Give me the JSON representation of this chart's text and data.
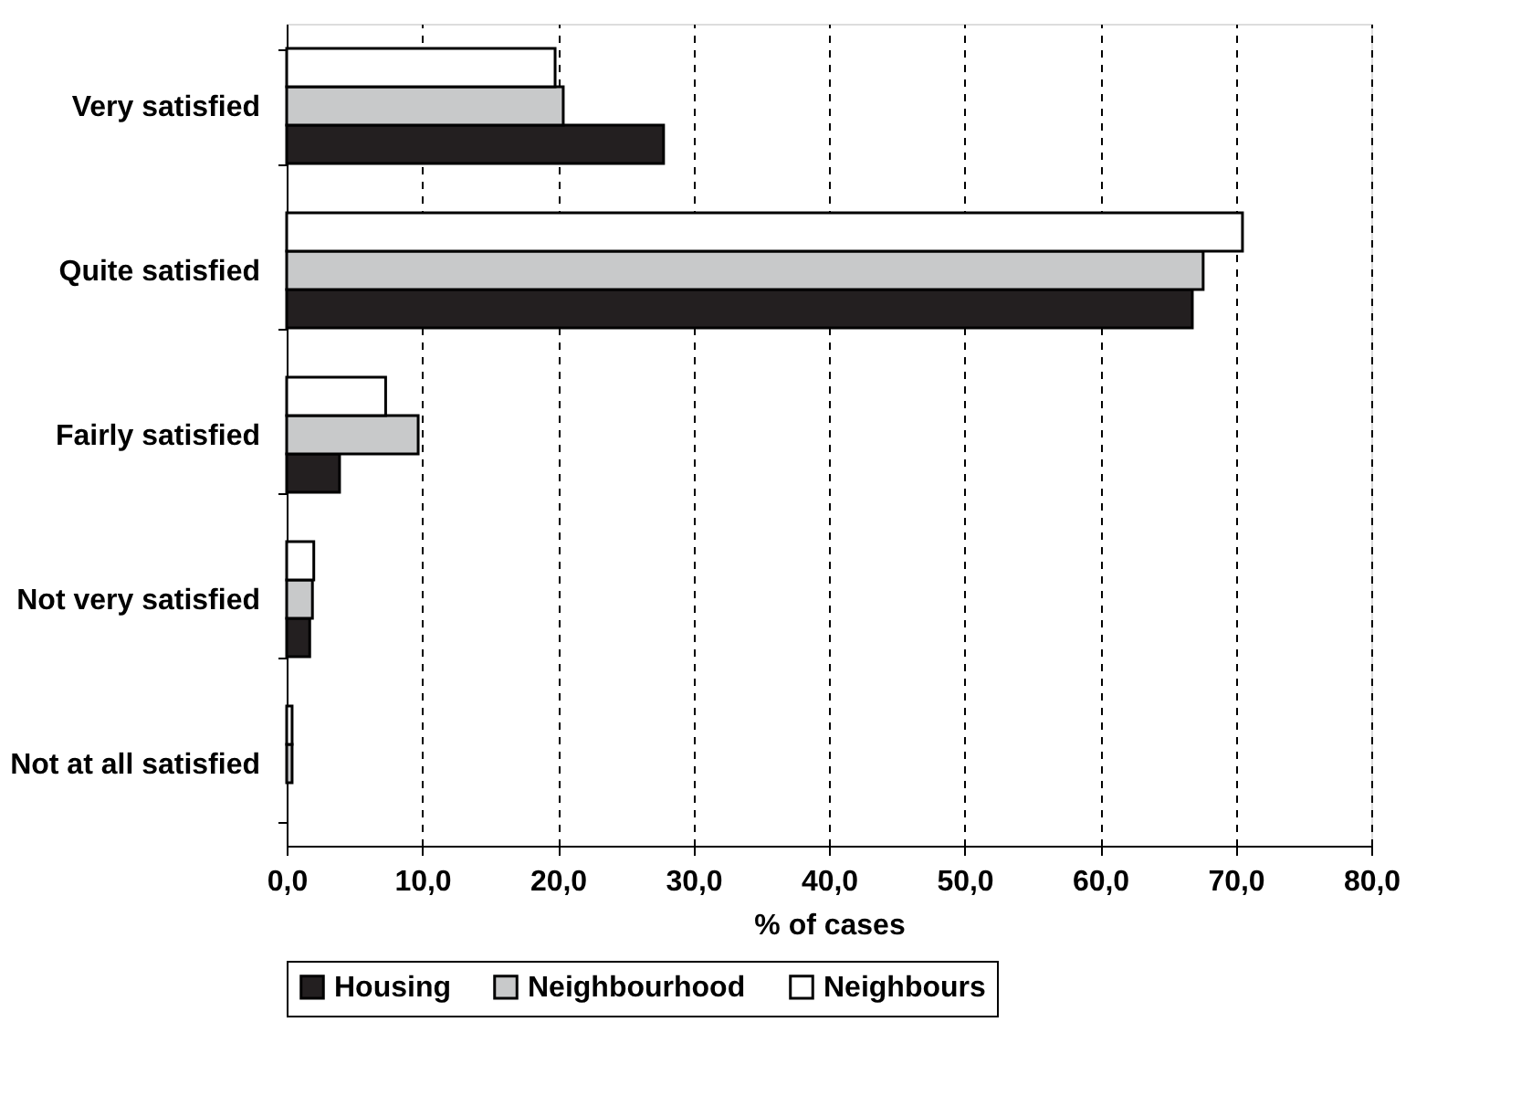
{
  "chart_data": {
    "type": "bar",
    "orientation": "horizontal",
    "categories": [
      "Very satisfied",
      "Quite satisfied",
      "Fairly satisfied",
      "Not very satisfied",
      "Not at all satisfied"
    ],
    "series": [
      {
        "name": "Housing",
        "color": "#231f20",
        "values": [
          27.8,
          66.8,
          3.9,
          1.7,
          null
        ]
      },
      {
        "name": "Neighbourhood",
        "color": "#c8c9ca",
        "values": [
          20.4,
          67.6,
          9.7,
          1.9,
          0.4
        ]
      },
      {
        "name": "Neighbours",
        "color": "#ffffff",
        "values": [
          19.8,
          70.5,
          7.3,
          2.0,
          0.4
        ]
      }
    ],
    "xlabel": "% of cases",
    "xlim": [
      0,
      80
    ],
    "xticks": [
      {
        "value": 0,
        "label": "0,0"
      },
      {
        "value": 10,
        "label": "10,0"
      },
      {
        "value": 20,
        "label": "20,0"
      },
      {
        "value": 30,
        "label": "30,0"
      },
      {
        "value": 40,
        "label": "40,0"
      },
      {
        "value": 50,
        "label": "50,0"
      },
      {
        "value": 60,
        "label": "60,0"
      },
      {
        "value": 70,
        "label": "70,0"
      },
      {
        "value": 80,
        "label": "80,0"
      }
    ],
    "grid": "x",
    "line_style": "dashed",
    "legend": "bottom"
  }
}
